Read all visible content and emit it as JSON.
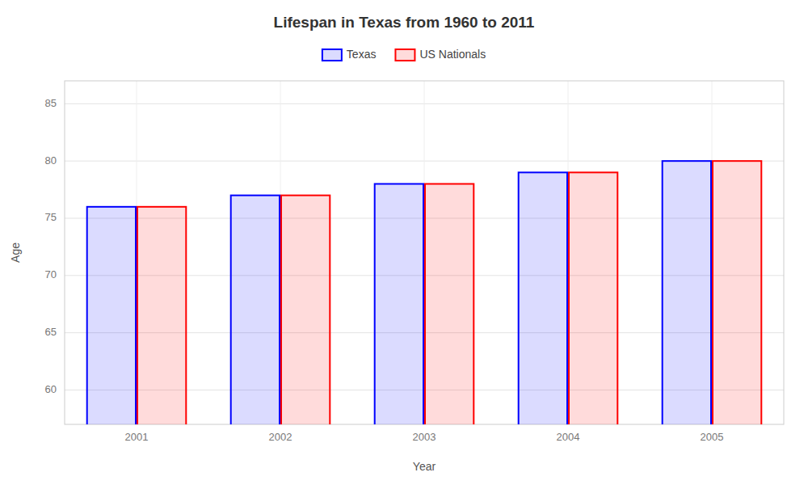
{
  "chart_data": {
    "type": "bar",
    "title": "Lifespan in Texas from 1960 to 2011",
    "xlabel": "Year",
    "ylabel": "Age",
    "categories": [
      "2001",
      "2002",
      "2003",
      "2004",
      "2005"
    ],
    "series": [
      {
        "name": "Texas",
        "color": "#0000ff",
        "values": [
          76,
          77,
          78,
          79,
          80
        ]
      },
      {
        "name": "US Nationals",
        "color": "#ff0000",
        "values": [
          76,
          77,
          78,
          79,
          80
        ]
      }
    ],
    "ylim": [
      57,
      87
    ],
    "yticks": [
      60,
      65,
      70,
      75,
      80,
      85
    ],
    "grid": true,
    "legend": "top"
  }
}
